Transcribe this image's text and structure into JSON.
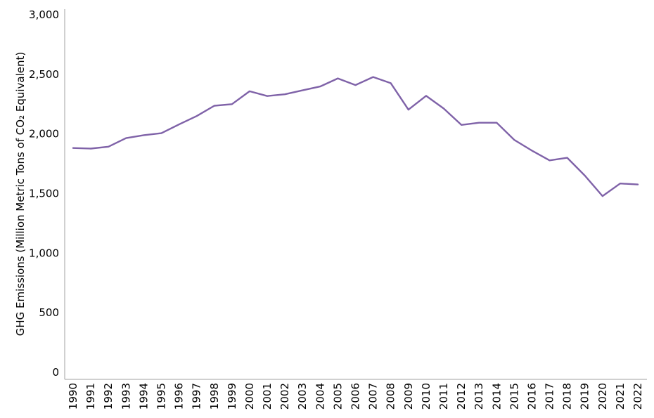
{
  "chart_data": {
    "type": "line",
    "title": "",
    "xlabel": "",
    "ylabel": "GHG Emissions (Million Metric Tons of CO₂ Equivalent)",
    "ylim": [
      0,
      3000
    ],
    "yticks": [
      0,
      500,
      1000,
      1500,
      2000,
      2500,
      3000
    ],
    "ytick_labels": [
      "0",
      "500",
      "1,000",
      "1,500",
      "2,000",
      "2,500",
      "3,000"
    ],
    "grid": false,
    "legend": "none",
    "categories": [
      "1990",
      "1991",
      "1992",
      "1993",
      "1994",
      "1995",
      "1996",
      "1997",
      "1998",
      "1999",
      "2000",
      "2001",
      "2002",
      "2003",
      "2004",
      "2005",
      "2006",
      "2007",
      "2008",
      "2009",
      "2010",
      "2011",
      "2012",
      "2013",
      "2014",
      "2015",
      "2016",
      "2017",
      "2018",
      "2019",
      "2020",
      "2021",
      "2022"
    ],
    "series": [
      {
        "color": "#7f62a8",
        "values": [
          1882,
          1877,
          1893,
          1965,
          1990,
          2006,
          2080,
          2150,
          2237,
          2250,
          2358,
          2318,
          2333,
          2366,
          2398,
          2466,
          2410,
          2478,
          2426,
          2204,
          2320,
          2213,
          2076,
          2094,
          2094,
          1950,
          1860,
          1778,
          1800,
          1650,
          1479,
          1584,
          1576
        ]
      }
    ]
  }
}
